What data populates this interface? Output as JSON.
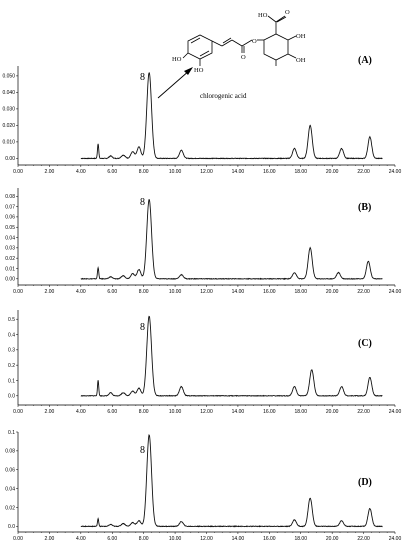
{
  "chart_data": [
    {
      "type": "line",
      "panel": "(A)",
      "peak_label": "8",
      "annotation": "chlorogenic acid",
      "xlim": [
        0,
        24
      ],
      "ylim": [
        -0.004,
        0.056
      ],
      "x_ticks": [
        "0.00",
        "2.00",
        "4.00",
        "6.00",
        "8.00",
        "10.00",
        "12.00",
        "14.00",
        "16.00",
        "18.00",
        "20.00",
        "22.00",
        "24.00"
      ],
      "y_ticks": [
        {
          "v": 0.0,
          "label": "0.00"
        },
        {
          "v": 0.01,
          "label": "0.010"
        },
        {
          "v": 0.02,
          "label": "0.020"
        },
        {
          "v": 0.03,
          "label": "0.030"
        },
        {
          "v": 0.04,
          "label": "0.040"
        },
        {
          "v": 0.05,
          "label": "0.050"
        }
      ],
      "baseline": 0.0,
      "peaks": [
        {
          "x": 5.1,
          "y": 0.009,
          "w": 0.04
        },
        {
          "x": 5.9,
          "y": 0.0015,
          "w": 0.1
        },
        {
          "x": 6.7,
          "y": 0.002,
          "w": 0.12
        },
        {
          "x": 7.3,
          "y": 0.004,
          "w": 0.12
        },
        {
          "x": 7.7,
          "y": 0.007,
          "w": 0.12
        },
        {
          "x": 8.35,
          "y": 0.052,
          "w": 0.15
        },
        {
          "x": 10.4,
          "y": 0.005,
          "w": 0.12
        },
        {
          "x": 17.6,
          "y": 0.006,
          "w": 0.12
        },
        {
          "x": 18.6,
          "y": 0.02,
          "w": 0.13
        },
        {
          "x": 20.6,
          "y": 0.006,
          "w": 0.12
        },
        {
          "x": 22.4,
          "y": 0.013,
          "w": 0.12
        }
      ]
    },
    {
      "type": "line",
      "panel": "(B)",
      "peak_label": "8",
      "xlim": [
        0,
        24
      ],
      "ylim": [
        -0.006,
        0.088
      ],
      "x_ticks": [
        "0.00",
        "2.00",
        "4.00",
        "6.00",
        "8.00",
        "10.00",
        "12.00",
        "14.00",
        "16.00",
        "18.00",
        "20.00",
        "22.00",
        "24.00"
      ],
      "y_ticks": [
        {
          "v": 0.0,
          "label": "0.00"
        },
        {
          "v": 0.01,
          "label": "0.01"
        },
        {
          "v": 0.02,
          "label": "0.02"
        },
        {
          "v": 0.03,
          "label": "0.03"
        },
        {
          "v": 0.04,
          "label": "0.04"
        },
        {
          "v": 0.05,
          "label": "0.05"
        },
        {
          "v": 0.06,
          "label": "0.06"
        },
        {
          "v": 0.07,
          "label": "0.07"
        },
        {
          "v": 0.08,
          "label": "0.08"
        }
      ],
      "baseline": 0.0,
      "peaks": [
        {
          "x": 5.1,
          "y": 0.011,
          "w": 0.04
        },
        {
          "x": 5.9,
          "y": 0.002,
          "w": 0.1
        },
        {
          "x": 6.7,
          "y": 0.003,
          "w": 0.12
        },
        {
          "x": 7.3,
          "y": 0.005,
          "w": 0.12
        },
        {
          "x": 7.7,
          "y": 0.009,
          "w": 0.12
        },
        {
          "x": 8.35,
          "y": 0.077,
          "w": 0.15
        },
        {
          "x": 10.4,
          "y": 0.004,
          "w": 0.12
        },
        {
          "x": 17.6,
          "y": 0.006,
          "w": 0.12
        },
        {
          "x": 18.6,
          "y": 0.03,
          "w": 0.13
        },
        {
          "x": 20.4,
          "y": 0.006,
          "w": 0.12
        },
        {
          "x": 22.3,
          "y": 0.017,
          "w": 0.12
        }
      ]
    },
    {
      "type": "line",
      "panel": "(C)",
      "peak_label": "8",
      "xlim": [
        0,
        24
      ],
      "ylim": [
        -0.06,
        0.56
      ],
      "x_ticks": [
        "0.00",
        "2.00",
        "4.00",
        "6.00",
        "8.00",
        "10.00",
        "12.00",
        "14.00",
        "16.00",
        "18.00",
        "20.00",
        "22.00",
        "24.00"
      ],
      "y_ticks": [
        {
          "v": 0.0,
          "label": "0.0"
        },
        {
          "v": 0.1,
          "label": "0.1"
        },
        {
          "v": 0.2,
          "label": "0.2"
        },
        {
          "v": 0.3,
          "label": "0.3"
        },
        {
          "v": 0.4,
          "label": "0.4"
        },
        {
          "v": 0.5,
          "label": "0.5"
        }
      ],
      "baseline": 0.0,
      "peaks": [
        {
          "x": 5.1,
          "y": 0.1,
          "w": 0.04
        },
        {
          "x": 5.9,
          "y": 0.02,
          "w": 0.1
        },
        {
          "x": 6.7,
          "y": 0.02,
          "w": 0.12
        },
        {
          "x": 7.3,
          "y": 0.03,
          "w": 0.12
        },
        {
          "x": 7.7,
          "y": 0.05,
          "w": 0.12
        },
        {
          "x": 8.35,
          "y": 0.52,
          "w": 0.15
        },
        {
          "x": 10.4,
          "y": 0.06,
          "w": 0.12
        },
        {
          "x": 17.6,
          "y": 0.06,
          "w": 0.12
        },
        {
          "x": 18.7,
          "y": 0.17,
          "w": 0.13
        },
        {
          "x": 20.6,
          "y": 0.06,
          "w": 0.12
        },
        {
          "x": 22.4,
          "y": 0.12,
          "w": 0.12
        }
      ]
    },
    {
      "type": "line",
      "panel": "(D)",
      "peak_label": "8",
      "xlim": [
        0,
        24
      ],
      "ylim": [
        -0.006,
        0.1
      ],
      "x_ticks": [
        "0.00",
        "2.00",
        "4.00",
        "6.00",
        "8.00",
        "10.00",
        "12.00",
        "14.00",
        "16.00",
        "18.00",
        "20.00",
        "22.00",
        "24.00"
      ],
      "y_ticks": [
        {
          "v": 0.0,
          "label": "0.0"
        },
        {
          "v": 0.02,
          "label": "0.02"
        },
        {
          "v": 0.04,
          "label": "0.04"
        },
        {
          "v": 0.06,
          "label": "0.06"
        },
        {
          "v": 0.08,
          "label": "0.08"
        },
        {
          "v": 0.1,
          "label": "0.1"
        }
      ],
      "baseline": 0.0,
      "peaks": [
        {
          "x": 5.1,
          "y": 0.008,
          "w": 0.04
        },
        {
          "x": 5.9,
          "y": 0.002,
          "w": 0.1
        },
        {
          "x": 6.7,
          "y": 0.003,
          "w": 0.12
        },
        {
          "x": 7.3,
          "y": 0.004,
          "w": 0.12
        },
        {
          "x": 7.7,
          "y": 0.006,
          "w": 0.12
        },
        {
          "x": 8.35,
          "y": 0.097,
          "w": 0.15
        },
        {
          "x": 10.4,
          "y": 0.005,
          "w": 0.12
        },
        {
          "x": 17.6,
          "y": 0.007,
          "w": 0.12
        },
        {
          "x": 18.6,
          "y": 0.03,
          "w": 0.13
        },
        {
          "x": 20.6,
          "y": 0.006,
          "w": 0.12
        },
        {
          "x": 22.4,
          "y": 0.019,
          "w": 0.12
        }
      ]
    }
  ],
  "structure": {
    "ho_1": "HO",
    "ho_2": "HO",
    "ho_3": "HO",
    "oh_1": "OH",
    "oh_2": "OH",
    "o_ester": "O",
    "o_link": "O",
    "o_carboxyl": "O"
  },
  "colors": {
    "trace": "#111111",
    "axis": "#000000"
  }
}
